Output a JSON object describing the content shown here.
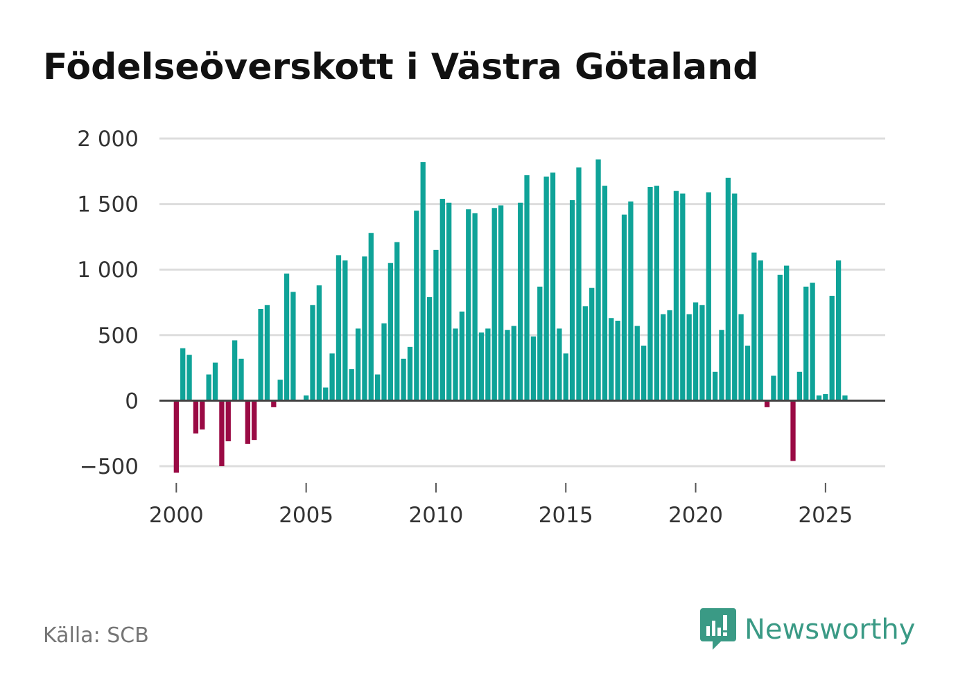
{
  "title": "Födelseöverskott i Västra Götaland",
  "source": "Källa: SCB",
  "brand": {
    "name": "Newsworthy",
    "icon": "newsworthy-logo-icon"
  },
  "colors": {
    "positive": "#0fa398",
    "negative": "#9a0a44",
    "grid": "#dddddd",
    "zero_line": "#444444",
    "brand": "#3a9a85"
  },
  "chart_data": {
    "type": "bar",
    "title": "Födelseöverskott i Västra Götaland",
    "xlabel": "",
    "ylabel": "",
    "frequency": "quarterly",
    "start": "2000-Q1",
    "ylim": [
      -530,
      2000
    ],
    "xlim": [
      1999.35,
      2027.3
    ],
    "y_ticks": [
      {
        "value": 2000,
        "label": "2 000"
      },
      {
        "value": 1500,
        "label": "1 500"
      },
      {
        "value": 1000,
        "label": "1 000"
      },
      {
        "value": 500,
        "label": "500"
      },
      {
        "value": 0,
        "label": "0"
      },
      {
        "value": -500,
        "label": "−500"
      }
    ],
    "x_ticks": [
      {
        "value": 2000,
        "label": "2000"
      },
      {
        "value": 2005,
        "label": "2005"
      },
      {
        "value": 2010,
        "label": "2010"
      },
      {
        "value": 2015,
        "label": "2015"
      },
      {
        "value": 2020,
        "label": "2020"
      },
      {
        "value": 2025,
        "label": "2025"
      }
    ],
    "values": [
      -550,
      400,
      350,
      -250,
      -220,
      200,
      290,
      -500,
      -310,
      460,
      320,
      -330,
      -300,
      700,
      730,
      -50,
      160,
      970,
      830,
      0,
      40,
      730,
      880,
      100,
      360,
      1110,
      1070,
      240,
      550,
      1100,
      1280,
      200,
      590,
      1050,
      1210,
      320,
      410,
      1450,
      1820,
      790,
      1150,
      1540,
      1510,
      550,
      680,
      1460,
      1430,
      520,
      550,
      1470,
      1490,
      540,
      570,
      1510,
      1720,
      490,
      870,
      1710,
      1740,
      550,
      360,
      1530,
      1780,
      720,
      860,
      1840,
      1640,
      630,
      610,
      1420,
      1520,
      570,
      420,
      1630,
      1640,
      660,
      690,
      1600,
      1580,
      660,
      750,
      730,
      1590,
      220,
      540,
      1700,
      1580,
      660,
      420,
      1130,
      1070,
      -50,
      190,
      960,
      1030,
      -460,
      220,
      870,
      900,
      40,
      50,
      800,
      1070,
      40
    ]
  }
}
